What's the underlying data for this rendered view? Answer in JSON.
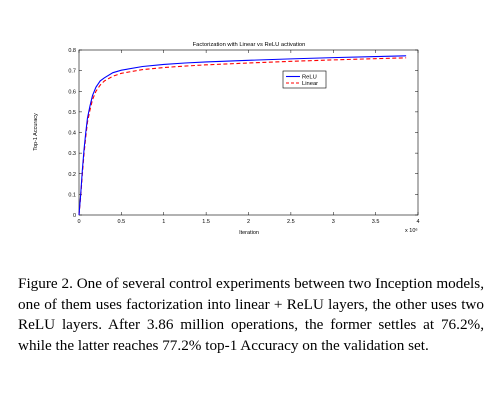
{
  "chart_data": {
    "type": "line",
    "title": "Factorization with Linear vs ReLU activation",
    "xlabel": "Iteration",
    "ylabel": "Top-1 Accuracy",
    "x_multiplier_label": "x 10⁶",
    "xlim": [
      0,
      4
    ],
    "ylim": [
      0,
      0.8
    ],
    "x_ticks": [
      "0",
      "0.5",
      "1",
      "1.5",
      "2",
      "2.5",
      "3",
      "3.5",
      "4"
    ],
    "y_ticks": [
      "0",
      "0.1",
      "0.2",
      "0.3",
      "0.4",
      "0.5",
      "0.6",
      "0.7",
      "0.8"
    ],
    "legend_position": "upper-right",
    "grid": false,
    "series": [
      {
        "name": "ReLU",
        "color": "#0000ff",
        "style": "solid",
        "points": [
          [
            0,
            0
          ],
          [
            0.02,
            0.1
          ],
          [
            0.04,
            0.22
          ],
          [
            0.06,
            0.32
          ],
          [
            0.08,
            0.4
          ],
          [
            0.1,
            0.47
          ],
          [
            0.13,
            0.53
          ],
          [
            0.16,
            0.58
          ],
          [
            0.2,
            0.62
          ],
          [
            0.25,
            0.65
          ],
          [
            0.3,
            0.665
          ],
          [
            0.4,
            0.69
          ],
          [
            0.5,
            0.702
          ],
          [
            0.75,
            0.72
          ],
          [
            1.0,
            0.73
          ],
          [
            1.25,
            0.737
          ],
          [
            1.5,
            0.742
          ],
          [
            2.0,
            0.75
          ],
          [
            2.5,
            0.757
          ],
          [
            3.0,
            0.763
          ],
          [
            3.5,
            0.768
          ],
          [
            3.86,
            0.772
          ]
        ]
      },
      {
        "name": "Linear",
        "color": "#ff0000",
        "style": "dashed",
        "points": [
          [
            0,
            0
          ],
          [
            0.02,
            0.09
          ],
          [
            0.04,
            0.2
          ],
          [
            0.06,
            0.3
          ],
          [
            0.08,
            0.38
          ],
          [
            0.1,
            0.45
          ],
          [
            0.13,
            0.51
          ],
          [
            0.16,
            0.56
          ],
          [
            0.2,
            0.6
          ],
          [
            0.25,
            0.63
          ],
          [
            0.3,
            0.65
          ],
          [
            0.4,
            0.673
          ],
          [
            0.5,
            0.687
          ],
          [
            0.75,
            0.705
          ],
          [
            1.0,
            0.715
          ],
          [
            1.25,
            0.722
          ],
          [
            1.5,
            0.728
          ],
          [
            2.0,
            0.737
          ],
          [
            2.5,
            0.745
          ],
          [
            3.0,
            0.752
          ],
          [
            3.5,
            0.758
          ],
          [
            3.86,
            0.762
          ]
        ]
      }
    ]
  },
  "caption": {
    "text": "Figure 2. One of several control experiments between two Inception models, one of them uses factorization into linear + ReLU layers, the other uses two ReLU layers. After 3.86 million operations, the former settles at 76.2%, while the latter reaches 77.2% top-1 Accuracy on the validation set."
  }
}
